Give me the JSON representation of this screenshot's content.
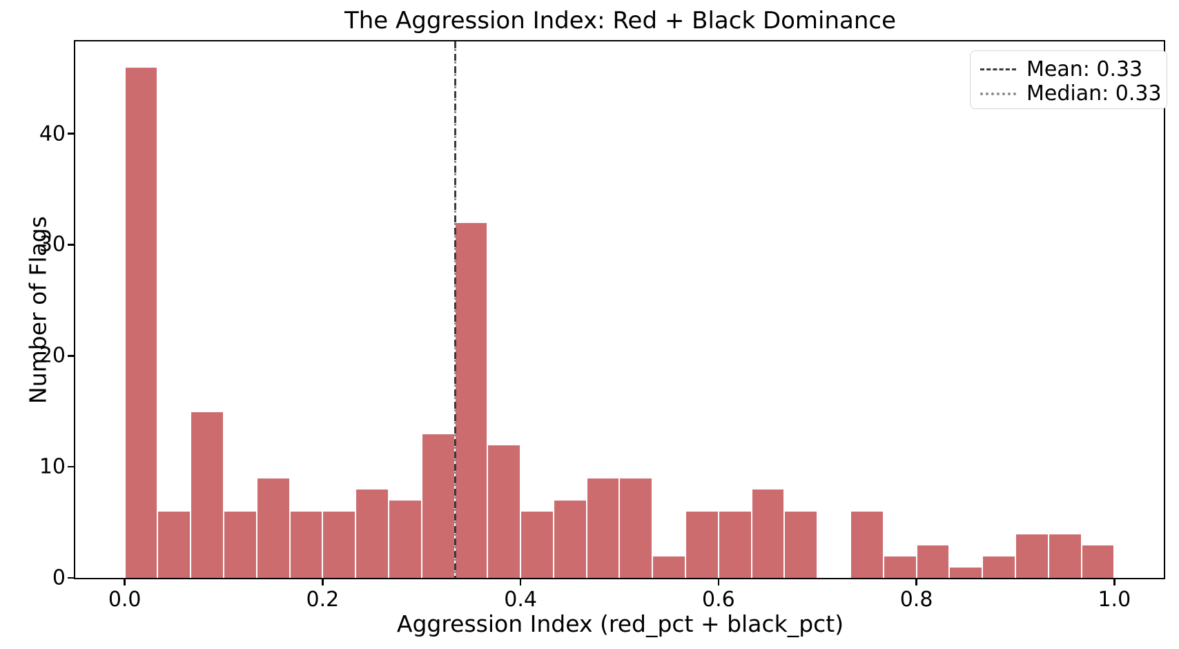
{
  "figure": {
    "title": "The Aggression Index: Red + Black Dominance"
  },
  "x_axis": {
    "label": "Aggression Index (red_pct + black_pct)",
    "tick_labels": [
      "0.0",
      "0.2",
      "0.4",
      "0.6",
      "0.8",
      "1.0"
    ],
    "tick_values": [
      0.0,
      0.2,
      0.4,
      0.6,
      0.8,
      1.0
    ]
  },
  "y_axis": {
    "label": "Number of Flags",
    "tick_labels": [
      "0",
      "10",
      "20",
      "30",
      "40"
    ],
    "tick_values": [
      0,
      10,
      20,
      30,
      40
    ]
  },
  "legend": {
    "items": [
      {
        "label": "Mean: 0.33",
        "line_style": "dashed",
        "color": "#3a3a3a"
      },
      {
        "label": "Median: 0.33",
        "line_style": "dotted",
        "color": "#8a8a8a"
      }
    ]
  },
  "chart_data": {
    "type": "bar",
    "subtype": "histogram",
    "title": "The Aggression Index: Red + Black Dominance",
    "xlabel": "Aggression Index (red_pct + black_pct)",
    "ylabel": "Number of Flags",
    "bin_range": [
      0.0,
      1.0
    ],
    "bin_width": 0.033333,
    "values": [
      46,
      6,
      15,
      6,
      9,
      6,
      6,
      8,
      7,
      13,
      32,
      12,
      6,
      7,
      9,
      9,
      2,
      6,
      6,
      8,
      6,
      0,
      6,
      2,
      3,
      1,
      2,
      4,
      4,
      3
    ],
    "total_flags": 250,
    "xlim": [
      -0.05,
      1.05
    ],
    "ylim": [
      0,
      48.3
    ],
    "mean": 0.33,
    "median": 0.33,
    "mean_line_x": 0.334,
    "median_line_x": 0.334,
    "bar_color": "#cd6c6e",
    "bar_edge_color": "#ffffff",
    "mean_line_color": "#3a3a3a",
    "median_line_color": "#8a8a8a",
    "grid": false,
    "legend_position": "upper right"
  }
}
